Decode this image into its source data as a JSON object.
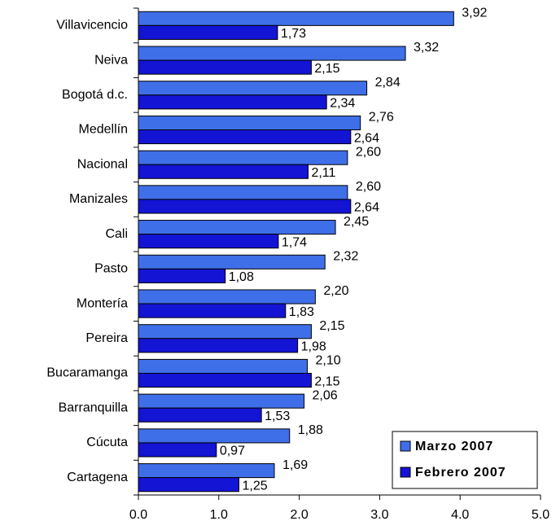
{
  "chart_data": {
    "type": "barh",
    "categories": [
      "Villavicencio",
      "Neiva",
      "Bogotá d.c.",
      "Medellín",
      "Nacional",
      "Manizales",
      "Cali",
      "Pasto",
      "Montería",
      "Pereira",
      "Bucaramanga",
      "Barranquilla",
      "Cúcuta",
      "Cartagena"
    ],
    "series": [
      {
        "name": "Marzo 2007",
        "color": "#3f6fe8",
        "values": [
          3.92,
          3.32,
          2.84,
          2.76,
          2.6,
          2.6,
          2.45,
          2.32,
          2.2,
          2.15,
          2.1,
          2.06,
          1.88,
          1.69
        ],
        "value_labels": [
          "3,92",
          "3,32",
          "2,84",
          "2,76",
          "2,60",
          "2,60",
          "2,45",
          "2,32",
          "2,20",
          "2,15",
          "2,10",
          "2,06",
          "1,88",
          "1,69"
        ]
      },
      {
        "name": "Febrero 2007",
        "color": "#1414d4",
        "values": [
          1.73,
          2.15,
          2.34,
          2.64,
          2.11,
          2.64,
          1.74,
          1.08,
          1.83,
          1.98,
          2.15,
          1.53,
          0.97,
          1.25
        ],
        "value_labels": [
          "1,73",
          "2,15",
          "2,34",
          "2,64",
          "2,11",
          "2,64",
          "1,74",
          "1,08",
          "1,83",
          "1,98",
          "2,15",
          "1,53",
          "0,97",
          "1,25"
        ]
      }
    ],
    "xlim": [
      0,
      5
    ],
    "xticks": [
      {
        "value": 0,
        "label": "0.0"
      },
      {
        "value": 1,
        "label": "1.0"
      },
      {
        "value": 2,
        "label": "2.0"
      },
      {
        "value": 3,
        "label": "3.0"
      },
      {
        "value": 4,
        "label": "4.0"
      },
      {
        "value": 5,
        "label": "5.0"
      }
    ],
    "legend": "lower right"
  }
}
